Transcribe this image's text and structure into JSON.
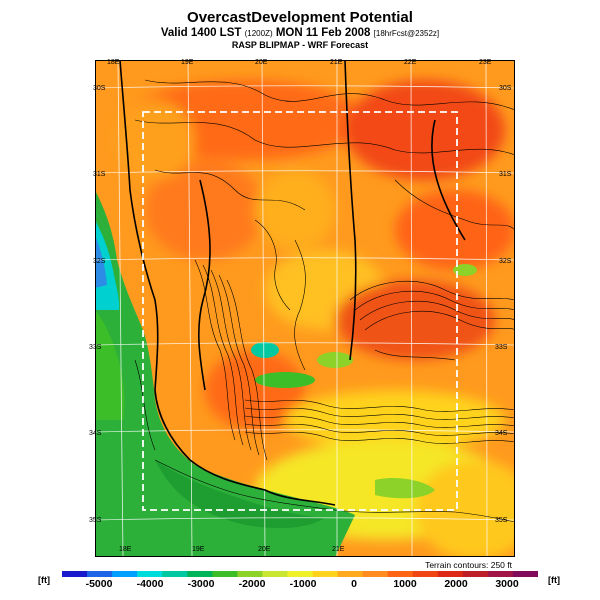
{
  "title": "OvercastDevelopment Potential",
  "subtitle": {
    "prefix": "Valid 1400 LST",
    "small1": "(1200Z)",
    "mid": "MON 11 Feb 2008",
    "small2": "[18hrFcst@2352z]"
  },
  "model": "RASP BLIPMAP - WRF Forecast",
  "terrain_note": "Terrain contours: 250 ft",
  "units_left": "[ft]",
  "units_right": "[ft]",
  "lon_top": [
    "18E",
    "19E",
    "20E",
    "21E",
    "22E",
    "23E"
  ],
  "lon_bottom": [
    "18E",
    "19E",
    "20E",
    "21E"
  ],
  "lat_left": [
    "30S",
    "31S",
    "32S",
    "33S",
    "34S",
    "35S"
  ],
  "lat_right": [
    "30S",
    "31S",
    "32S",
    "33S",
    "34S",
    "35S"
  ],
  "colorbar": {
    "labels": [
      "-5000",
      "-4000",
      "-3000",
      "-2000",
      "-1000",
      "0",
      "1000",
      "2000",
      "3000"
    ],
    "colors": [
      "#1a1acd",
      "#1e64e6",
      "#00a0ff",
      "#00dcdc",
      "#00c8a0",
      "#00b45a",
      "#3cbe28",
      "#8cd228",
      "#c8e632",
      "#f0f028",
      "#ffd21e",
      "#ffaa1e",
      "#ff8c1e",
      "#ff6414",
      "#f04614",
      "#dc2814",
      "#be1e28",
      "#a01446",
      "#820a5a"
    ]
  },
  "colors": {
    "ocean": "#2cb03a",
    "land_base": "#ff9a1e",
    "frame": "#000000",
    "domain_box": "#ffffff"
  }
}
